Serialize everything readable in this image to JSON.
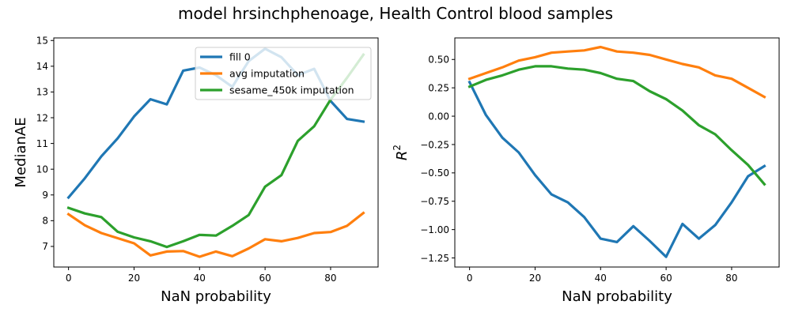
{
  "figure": {
    "title": "model hrsinchphenoage, Health Control blood samples"
  },
  "chart_data": [
    {
      "type": "line",
      "xlabel": "NaN probability",
      "ylabel": "MedianAE",
      "xlim": [
        -4.5,
        94.5
      ],
      "ylim": [
        6.2,
        15.1
      ],
      "x_ticks": [
        "0",
        "20",
        "40",
        "60",
        "80"
      ],
      "y_ticks": [
        "7",
        "8",
        "9",
        "10",
        "11",
        "12",
        "13",
        "14",
        "15"
      ],
      "legend": "top-right",
      "grid": false,
      "x": [
        0,
        5,
        10,
        15,
        20,
        25,
        30,
        35,
        40,
        45,
        50,
        55,
        60,
        65,
        70,
        75,
        80,
        85,
        90
      ],
      "series": [
        {
          "name": "fill 0",
          "color": "#1f77b4",
          "values": [
            8.9,
            9.65,
            10.5,
            11.2,
            12.05,
            12.72,
            12.52,
            13.83,
            13.95,
            13.65,
            13.2,
            14.2,
            14.68,
            14.35,
            13.65,
            13.9,
            12.65,
            11.95,
            11.85
          ]
        },
        {
          "name": "avg imputation",
          "color": "#ff7f0e",
          "values": [
            8.25,
            7.82,
            7.52,
            7.32,
            7.12,
            6.65,
            6.8,
            6.82,
            6.6,
            6.8,
            6.62,
            6.92,
            7.28,
            7.2,
            7.33,
            7.52,
            7.56,
            7.8,
            8.3
          ]
        },
        {
          "name": "sesame_450k imputation",
          "color": "#2ca02c",
          "values": [
            8.5,
            8.28,
            8.14,
            7.57,
            7.35,
            7.2,
            6.98,
            7.2,
            7.45,
            7.42,
            7.8,
            8.22,
            9.32,
            9.77,
            11.1,
            11.67,
            12.7,
            13.55,
            14.45
          ]
        }
      ]
    },
    {
      "type": "line",
      "xlabel": "NaN probability",
      "ylabel": "R",
      "ylabel_superscript": "2",
      "xlim": [
        -4.5,
        94.5
      ],
      "ylim": [
        -1.33,
        0.69
      ],
      "x_ticks": [
        "0",
        "20",
        "40",
        "60",
        "80"
      ],
      "y_ticks": [
        "0.50",
        "0.25",
        "0.00",
        "−0.25",
        "−0.50",
        "−0.75",
        "−1.00",
        "−1.25"
      ],
      "grid": false,
      "x": [
        0,
        5,
        10,
        15,
        20,
        25,
        30,
        35,
        40,
        45,
        50,
        55,
        60,
        65,
        70,
        75,
        80,
        85,
        90
      ],
      "series": [
        {
          "name": "fill 0",
          "color": "#1f77b4",
          "values": [
            0.3,
            0.01,
            -0.19,
            -0.32,
            -0.52,
            -0.69,
            -0.76,
            -0.89,
            -1.08,
            -1.11,
            -0.97,
            -1.1,
            -1.24,
            -0.95,
            -1.08,
            -0.96,
            -0.76,
            -0.53,
            -0.44
          ]
        },
        {
          "name": "avg imputation",
          "color": "#ff7f0e",
          "values": [
            0.33,
            0.38,
            0.43,
            0.49,
            0.52,
            0.56,
            0.57,
            0.58,
            0.61,
            0.57,
            0.56,
            0.54,
            0.5,
            0.46,
            0.43,
            0.36,
            0.33,
            0.25,
            0.17
          ]
        },
        {
          "name": "sesame_450k imputation",
          "color": "#2ca02c",
          "values": [
            0.26,
            0.32,
            0.36,
            0.41,
            0.44,
            0.44,
            0.42,
            0.41,
            0.38,
            0.33,
            0.31,
            0.22,
            0.15,
            0.05,
            -0.08,
            -0.16,
            -0.3,
            -0.43,
            -0.6
          ]
        }
      ]
    }
  ]
}
